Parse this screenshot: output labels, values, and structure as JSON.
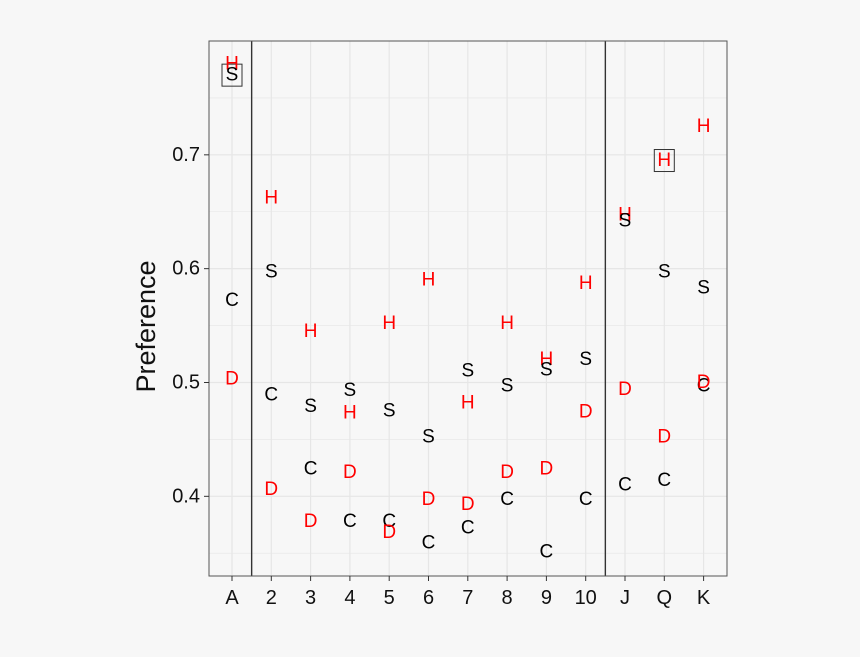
{
  "chart_data": {
    "type": "scatter",
    "ylabel": "Preference",
    "xlabel": "",
    "title": "",
    "categories": [
      "A",
      "2",
      "3",
      "4",
      "5",
      "6",
      "7",
      "8",
      "9",
      "10",
      "J",
      "Q",
      "K"
    ],
    "yticks": [
      0.4,
      0.5,
      0.6,
      0.7
    ],
    "ytick_labels": [
      "0.4",
      "0.5",
      "0.6",
      "0.7"
    ],
    "ylim": [
      0.33,
      0.8
    ],
    "grid": true,
    "separators_after": [
      "A",
      "10"
    ],
    "series": [
      {
        "label": "H",
        "color": "#ff0000",
        "values": [
          0.78,
          0.662,
          0.545,
          0.473,
          0.552,
          0.59,
          0.482,
          0.552,
          0.52,
          0.587,
          0.647,
          0.695,
          0.725
        ]
      },
      {
        "label": "S",
        "color": "#000000",
        "values": [
          0.77,
          0.597,
          0.479,
          0.493,
          0.475,
          0.452,
          0.51,
          0.497,
          0.511,
          0.52,
          0.642,
          0.597,
          0.583
        ]
      },
      {
        "label": "C",
        "color": "#000000",
        "values": [
          0.572,
          0.489,
          0.424,
          0.378,
          0.378,
          0.359,
          0.372,
          0.397,
          0.351,
          0.397,
          0.41,
          0.414,
          0.497
        ]
      },
      {
        "label": "D",
        "color": "#ff0000",
        "values": [
          0.503,
          0.406,
          0.378,
          0.421,
          0.368,
          0.397,
          0.393,
          0.421,
          0.424,
          0.474,
          0.494,
          0.452,
          0.5
        ]
      }
    ],
    "boxed_points": [
      {
        "series": "S",
        "category": "A"
      },
      {
        "series": "H",
        "category": "Q"
      }
    ],
    "colors": {
      "background": "#f7f7f7",
      "panel_border": "#555555",
      "grid": "#e6e6e6",
      "separator": "#333333",
      "highlight_box": "#333333"
    }
  }
}
